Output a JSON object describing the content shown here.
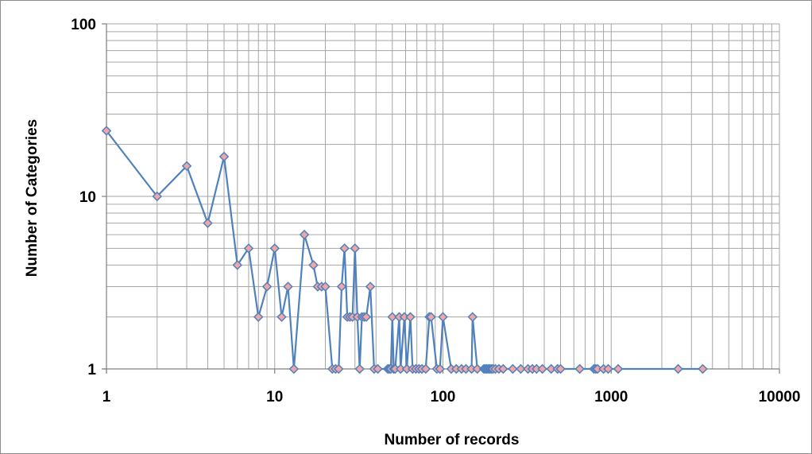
{
  "chart_data": {
    "type": "line",
    "title": "",
    "xlabel": "Number of records",
    "ylabel": "Number of Categories",
    "x_scale": "log",
    "y_scale": "log",
    "xlim": [
      1,
      10000
    ],
    "ylim": [
      1,
      100
    ],
    "x_ticks": [
      "1",
      "10",
      "100",
      "1000",
      "10000"
    ],
    "y_ticks": [
      "1",
      "10",
      "100"
    ],
    "grid": true,
    "legend": "none",
    "colors": {
      "line": "#4f81bd",
      "marker_fill": "#f2a5a5",
      "marker_stroke": "#4f81bd",
      "grid": "#a6a6a6"
    },
    "series": [
      {
        "x": [
          1,
          2,
          3,
          4,
          5,
          6,
          7,
          8,
          9,
          10,
          11,
          12,
          13,
          15,
          17,
          18,
          19,
          20,
          22,
          23,
          24,
          25,
          26,
          27,
          28,
          29,
          30,
          31,
          32,
          33,
          34,
          35,
          37,
          39,
          41,
          47,
          48,
          49,
          50,
          51,
          52,
          55,
          56,
          59,
          61,
          64,
          66,
          69,
          72,
          75,
          79,
          83,
          85,
          92,
          96,
          100,
          112,
          120,
          129,
          137,
          148,
          150,
          160,
          175,
          179,
          182,
          186,
          190,
          194,
          198,
          205,
          215,
          228,
          260,
          290,
          320,
          340,
          360,
          390,
          440,
          480,
          500,
          650,
          790,
          810,
          830,
          900,
          960,
          1100,
          2500,
          3500
        ],
        "y": [
          24,
          10,
          15,
          7,
          17,
          4,
          5,
          2,
          3,
          5,
          2,
          3,
          1,
          6,
          4,
          3,
          3,
          3,
          1,
          1,
          1,
          3,
          5,
          2,
          2,
          2,
          5,
          2,
          1,
          2,
          2,
          2,
          3,
          1,
          1,
          1,
          1,
          1,
          2,
          1,
          1,
          2,
          1,
          2,
          1,
          2,
          1,
          1,
          1,
          1,
          1,
          2,
          2,
          1,
          1,
          2,
          1,
          1,
          1,
          1,
          1,
          2,
          1,
          1,
          1,
          1,
          1,
          1,
          1,
          1,
          1,
          1,
          1,
          1,
          1,
          1,
          1,
          1,
          1,
          1,
          1,
          1,
          1,
          1,
          1,
          1,
          1,
          1,
          1,
          1,
          1
        ]
      }
    ]
  }
}
